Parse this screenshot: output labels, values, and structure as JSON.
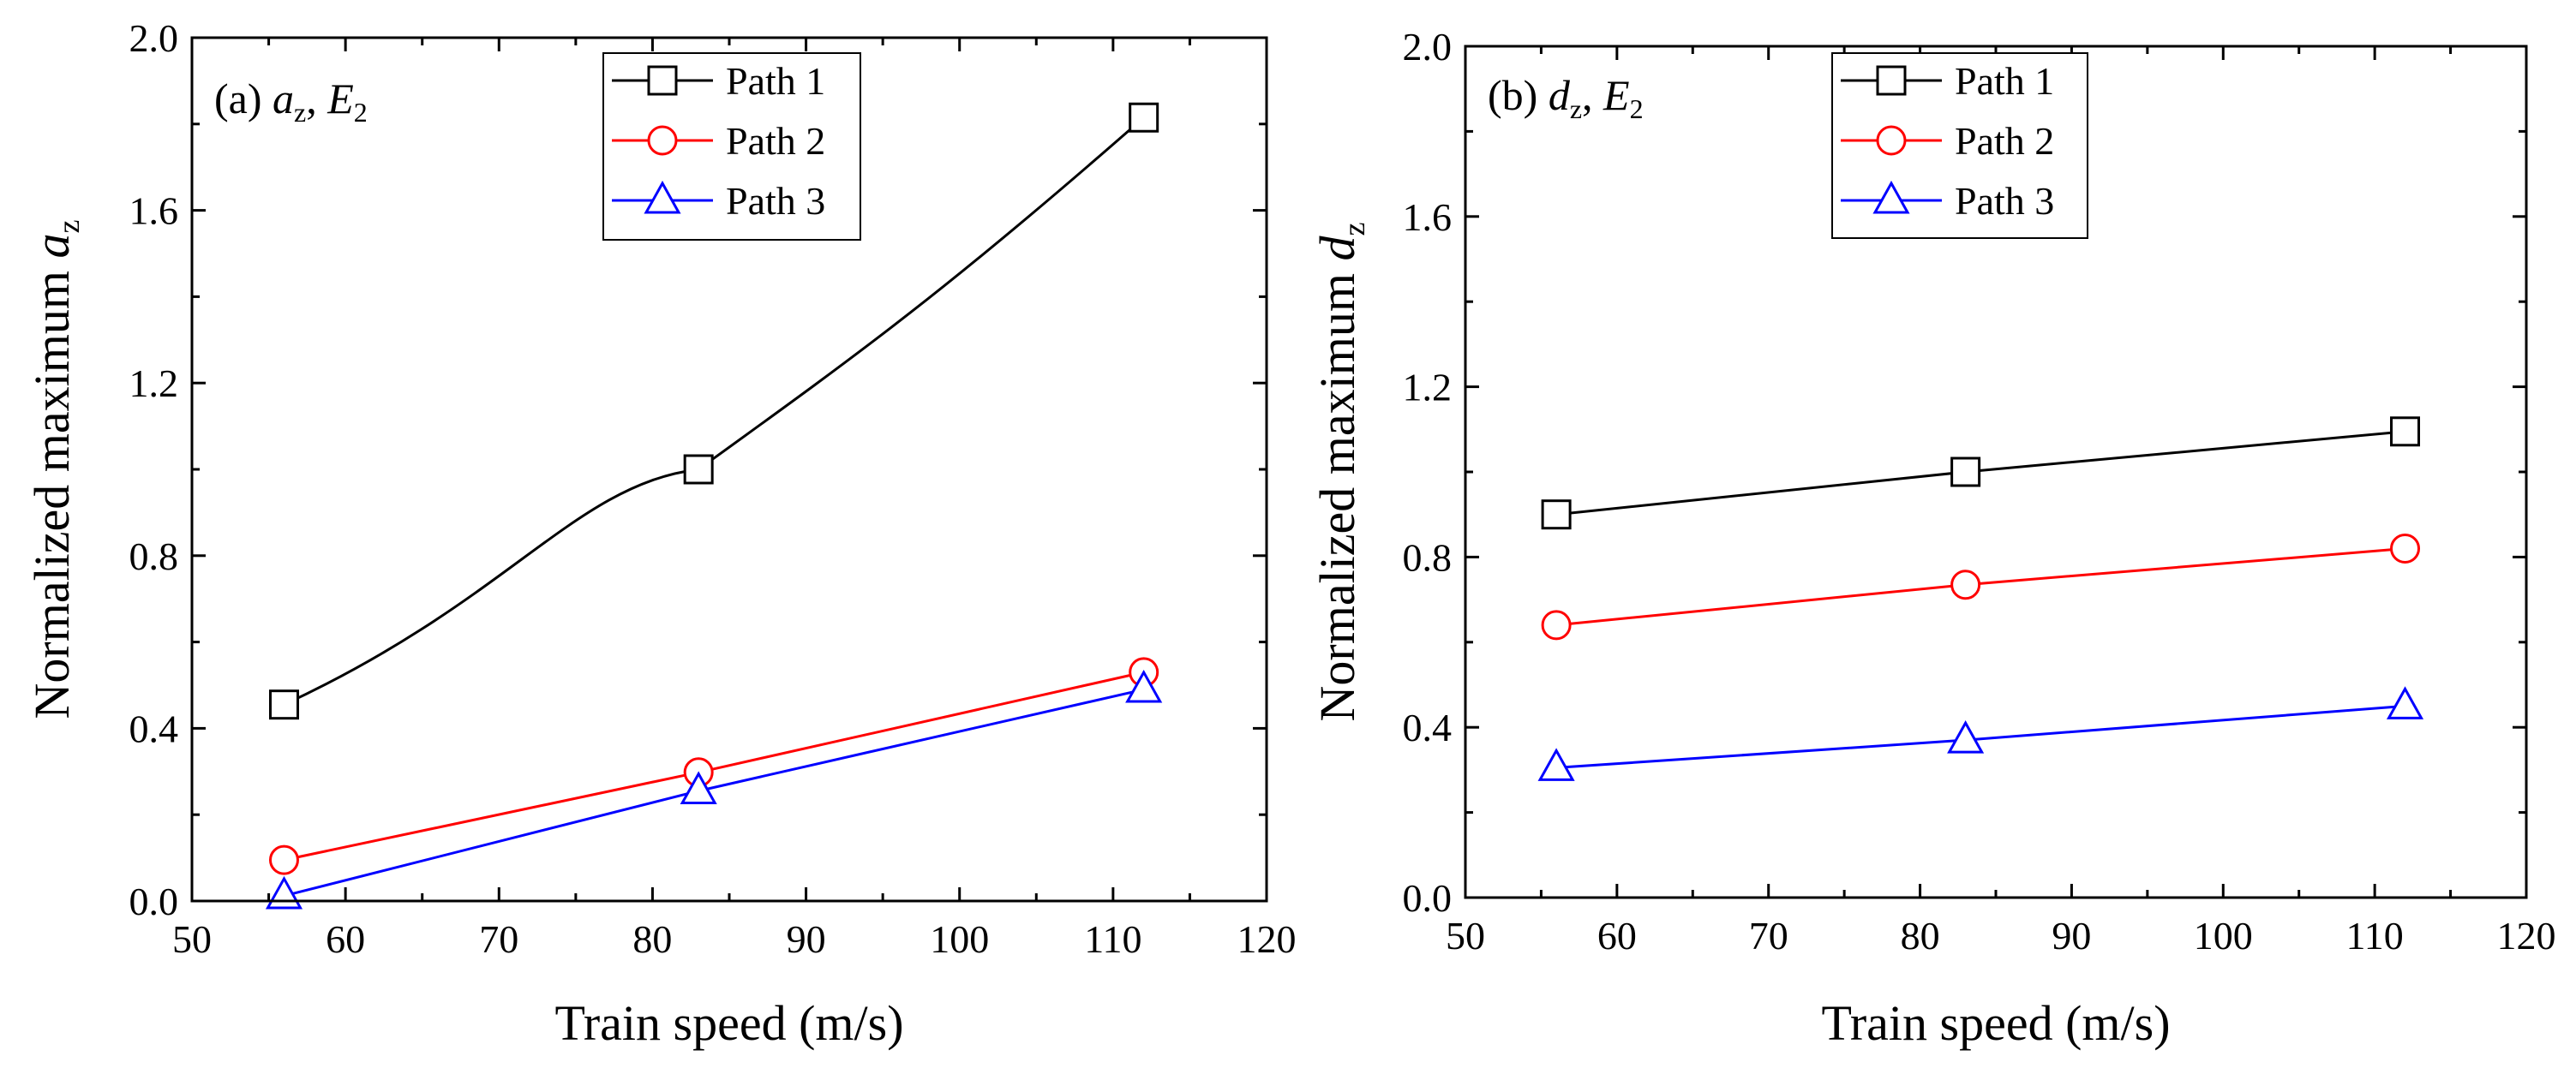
{
  "chart_data": [
    {
      "type": "line",
      "panel_label": {
        "prefix": "(a) ",
        "var": "a",
        "sub": "z",
        "sep": ", ",
        "var2": "E",
        "sub2": "2"
      },
      "xlabel": "Train speed (m/s)",
      "ylabel": {
        "text": "Normalized maximum ",
        "var": "a",
        "sub": "z"
      },
      "xlim": [
        50,
        120
      ],
      "ylim": [
        0,
        2.0
      ],
      "x_ticks": [
        "50",
        "60",
        "70",
        "80",
        "90",
        "100",
        "110",
        "120"
      ],
      "y_ticks": [
        "0.0",
        "0.4",
        "0.8",
        "1.2",
        "1.6",
        "2.0"
      ],
      "x": [
        56,
        83,
        112
      ],
      "legend_position": "top-center",
      "series": [
        {
          "name": "Path 1",
          "values": [
            0.455,
            1.0,
            1.815
          ],
          "color": "#000000",
          "marker": "square",
          "smooth": true
        },
        {
          "name": "Path 2",
          "values": [
            0.095,
            0.298,
            0.53
          ],
          "color": "#ff0000",
          "marker": "circle",
          "smooth": false
        },
        {
          "name": "Path 3",
          "values": [
            0.012,
            0.255,
            0.49
          ],
          "color": "#0000ff",
          "marker": "triangle",
          "smooth": false
        }
      ]
    },
    {
      "type": "line",
      "panel_label": {
        "prefix": "(b) ",
        "var": "d",
        "sub": "z",
        "sep": ", ",
        "var2": "E",
        "sub2": "2"
      },
      "xlabel": "Train speed (m/s)",
      "ylabel": {
        "text": "Normalized maximum ",
        "var": "d",
        "sub": "z"
      },
      "xlim": [
        50,
        120
      ],
      "ylim": [
        0,
        2.0
      ],
      "x_ticks": [
        "50",
        "60",
        "70",
        "80",
        "90",
        "100",
        "110",
        "120"
      ],
      "y_ticks": [
        "0.0",
        "0.4",
        "0.8",
        "1.2",
        "1.6",
        "2.0"
      ],
      "x": [
        56,
        83,
        112
      ],
      "legend_position": "top-center",
      "series": [
        {
          "name": "Path 1",
          "values": [
            0.9,
            1.0,
            1.095
          ],
          "color": "#000000",
          "marker": "square",
          "smooth": false
        },
        {
          "name": "Path 2",
          "values": [
            0.64,
            0.735,
            0.82
          ],
          "color": "#ff0000",
          "marker": "circle",
          "smooth": false
        },
        {
          "name": "Path 3",
          "values": [
            0.305,
            0.37,
            0.45
          ],
          "color": "#0000ff",
          "marker": "triangle",
          "smooth": false
        }
      ]
    }
  ]
}
